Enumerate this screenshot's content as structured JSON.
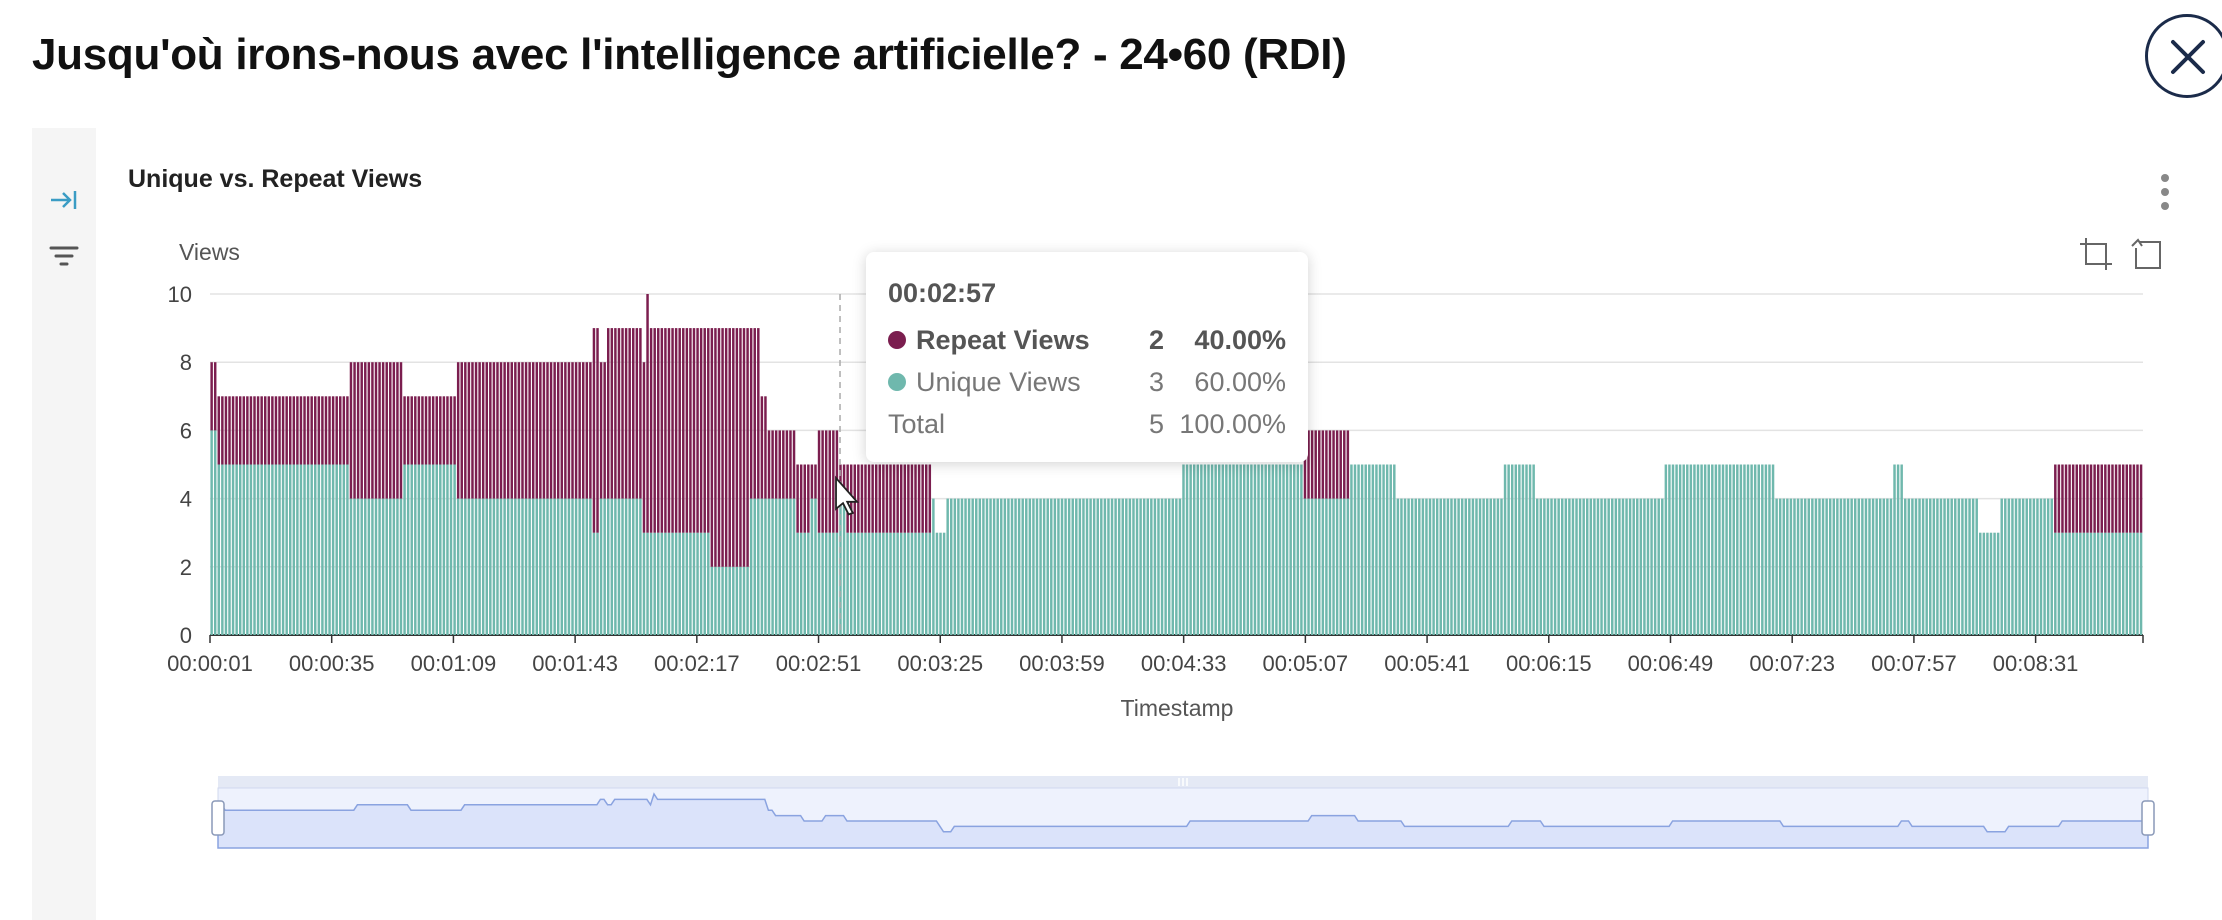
{
  "page": {
    "title": "Jusqu'où irons-nous avec l'intelligence artificielle? - 24•60 (RDI)"
  },
  "panel": {
    "title": "Unique vs. Repeat Views"
  },
  "icons": {
    "close": "close-icon",
    "collapse": "collapse-right-icon",
    "filter": "filter-icon",
    "kebab": "kebab-menu-icon",
    "zoom": "data-zoom-icon",
    "reset": "zoom-reset-icon"
  },
  "colors": {
    "repeat": "#7b1e4f",
    "unique": "#6fb8ad",
    "rail_icon": "#3a9cc4",
    "zoom_fill": "#dbe3fa",
    "zoom_line": "#8aa3e0"
  },
  "tooltip": {
    "time": "00:02:57",
    "rows": [
      {
        "name": "Repeat Views",
        "count": "2",
        "pct": "40.00%"
      },
      {
        "name": "Unique Views",
        "count": "3",
        "pct": "60.00%"
      },
      {
        "name": "Total",
        "count": "5",
        "pct": "100.00%"
      }
    ]
  },
  "chart_data": {
    "type": "bar",
    "stacked": true,
    "title": "Unique vs. Repeat Views",
    "ylabel": "Views",
    "xlabel": "Timestamp",
    "ylim": [
      0,
      10
    ],
    "yticks": [
      "0",
      "2",
      "4",
      "6",
      "8",
      "10"
    ],
    "xticks": [
      "00:00:01",
      "00:00:35",
      "00:01:09",
      "00:01:43",
      "00:02:17",
      "00:02:51",
      "00:03:25",
      "00:03:59",
      "00:04:33",
      "00:05:07",
      "00:05:41",
      "00:06:15",
      "00:06:49",
      "00:07:23",
      "00:07:57",
      "00:08:31"
    ],
    "x_start_seconds": 1,
    "x_end_seconds": 541,
    "grid": true,
    "legend": "none",
    "hovered": "00:02:57",
    "series": [
      {
        "name": "Unique Views",
        "segments": [
          [
            1,
            2,
            6
          ],
          [
            3,
            39,
            5
          ],
          [
            40,
            54,
            4
          ],
          [
            55,
            69,
            5
          ],
          [
            70,
            107,
            4
          ],
          [
            108,
            109,
            3
          ],
          [
            110,
            121,
            4
          ],
          [
            122,
            140,
            3
          ],
          [
            141,
            151,
            2
          ],
          [
            152,
            164,
            4
          ],
          [
            165,
            168,
            3
          ],
          [
            169,
            170,
            4
          ],
          [
            171,
            176,
            3
          ],
          [
            177,
            178,
            4
          ],
          [
            179,
            195,
            3
          ],
          [
            196,
            202,
            3
          ],
          [
            203,
            203,
            4
          ],
          [
            204,
            206,
            3
          ],
          [
            207,
            272,
            4
          ],
          [
            273,
            306,
            5
          ],
          [
            307,
            319,
            4
          ],
          [
            320,
            332,
            5
          ],
          [
            333,
            362,
            4
          ],
          [
            363,
            371,
            5
          ],
          [
            372,
            407,
            4
          ],
          [
            408,
            438,
            5
          ],
          [
            439,
            471,
            4
          ],
          [
            472,
            474,
            5
          ],
          [
            475,
            495,
            4
          ],
          [
            496,
            501,
            3
          ],
          [
            502,
            516,
            4
          ],
          [
            517,
            541,
            3
          ]
        ]
      },
      {
        "name": "Repeat Views",
        "segments": [
          [
            1,
            2,
            2
          ],
          [
            3,
            39,
            2
          ],
          [
            40,
            54,
            4
          ],
          [
            55,
            69,
            2
          ],
          [
            70,
            107,
            4
          ],
          [
            108,
            109,
            6
          ],
          [
            110,
            111,
            4
          ],
          [
            112,
            121,
            5
          ],
          [
            122,
            122,
            5
          ],
          [
            123,
            123,
            7
          ],
          [
            124,
            140,
            6
          ],
          [
            141,
            151,
            7
          ],
          [
            152,
            154,
            5
          ],
          [
            155,
            156,
            3
          ],
          [
            157,
            164,
            2
          ],
          [
            165,
            168,
            2
          ],
          [
            169,
            170,
            1
          ],
          [
            171,
            176,
            3
          ],
          [
            177,
            178,
            1
          ],
          [
            179,
            195,
            2
          ],
          [
            196,
            202,
            2
          ],
          [
            203,
            203,
            0
          ],
          [
            204,
            206,
            0
          ],
          [
            207,
            272,
            0
          ],
          [
            273,
            306,
            0
          ],
          [
            307,
            319,
            2
          ],
          [
            320,
            541,
            0
          ],
          [
            517,
            541,
            2
          ]
        ]
      }
    ]
  },
  "zoom": {
    "start": 0,
    "end": 100
  }
}
